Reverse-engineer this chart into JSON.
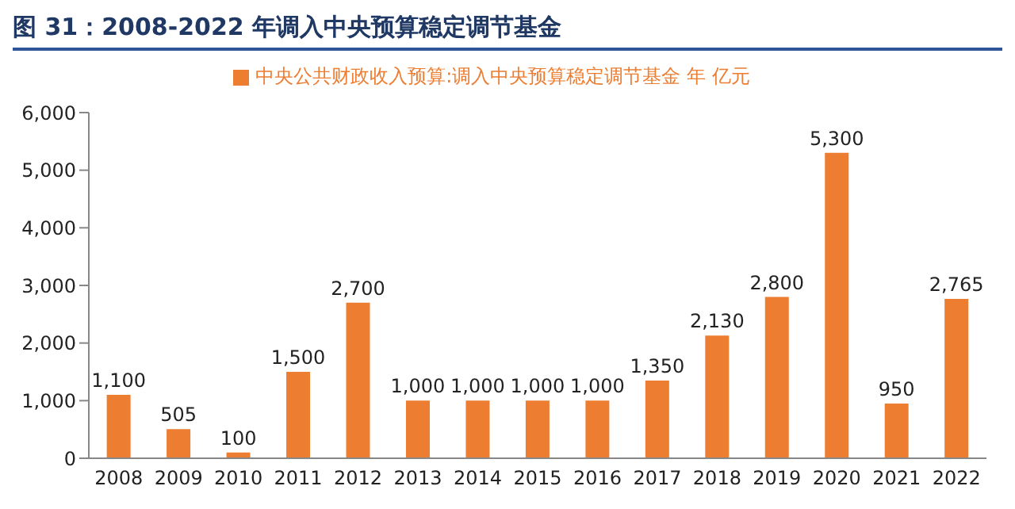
{
  "chart_data": {
    "type": "bar",
    "title": "图 31：2008-2022 年调入中央预算稳定调节基金",
    "categories": [
      "2008",
      "2009",
      "2010",
      "2011",
      "2012",
      "2013",
      "2014",
      "2015",
      "2016",
      "2017",
      "2018",
      "2019",
      "2020",
      "2021",
      "2022"
    ],
    "series": [
      {
        "name": "中央公共财政收入预算:调入中央预算稳定调节基金 年 亿元",
        "color": "#ed7d31",
        "values": [
          1100,
          505,
          100,
          1500,
          2700,
          1000,
          1000,
          1000,
          1000,
          1350,
          2130,
          2800,
          5300,
          950,
          2765
        ],
        "value_labels": [
          "1,100",
          "505",
          "100",
          "1,500",
          "2,700",
          "1,000",
          "1,000",
          "1,000",
          "1,000",
          "1,350",
          "2,130",
          "2,800",
          "5,300",
          "950",
          "2,765"
        ]
      }
    ],
    "ylim": [
      0,
      6000
    ],
    "yticks": [
      0,
      {
        "value": 1000,
        "label": "1,000"
      },
      {
        "value": 2000,
        "label": "2,000"
      },
      {
        "value": 3000,
        "label": "3,000"
      },
      {
        "value": 4000,
        "label": "4,000"
      },
      {
        "value": 5000,
        "label": "5,000"
      },
      {
        "value": 6000,
        "label": "6,000"
      }
    ],
    "grid": false,
    "legend": "top"
  }
}
